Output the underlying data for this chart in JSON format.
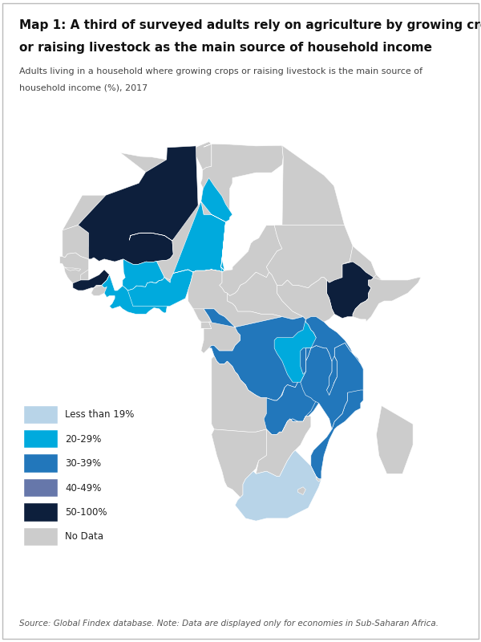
{
  "title": "Map 1: A third of surveyed adults rely on agriculture by growing crops\nor raising livestock as the main source of household income",
  "subtitle": "Adults living in a household where growing crops or raising livestock is the main source of\nhousehold income (%), 2017",
  "source": "Source: Global Findex database. Note: Data are displayed only for economies in Sub-Saharan Africa.",
  "title_fontsize": 11.0,
  "subtitle_fontsize": 8.5,
  "source_fontsize": 8.0,
  "background_color": "#ffffff",
  "legend_labels": [
    "Less than 19%",
    "20-29%",
    "30-39%",
    "40-49%",
    "50-100%",
    "No Data"
  ],
  "legend_colors": [
    "#b8d4e8",
    "#00aadd",
    "#2277bb",
    "#6677aa",
    "#0d1f3c",
    "#cccccc"
  ],
  "border_color": "#cccccc",
  "map_xlim": [
    -20,
    55
  ],
  "map_ylim": [
    -38,
    38
  ]
}
